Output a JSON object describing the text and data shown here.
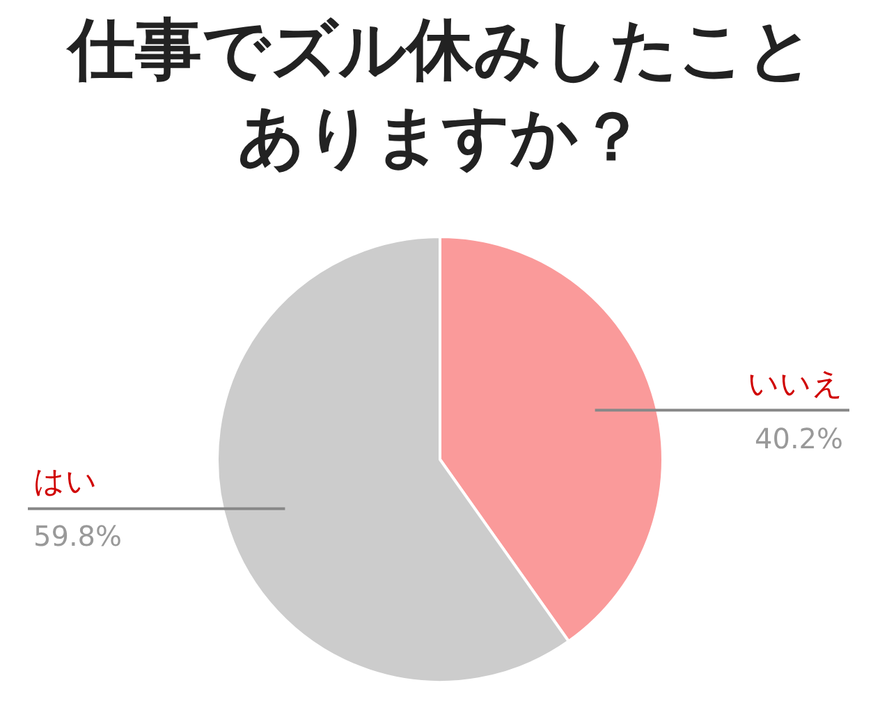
{
  "chart_data": {
    "type": "pie",
    "title": "仕事でズル休みしたことありますか？",
    "categories": [
      "いいえ",
      "はい"
    ],
    "values": [
      40.2,
      59.8
    ],
    "colors": [
      "#fa9a9a",
      "#cccccc"
    ],
    "value_labels": [
      "40.2%",
      "59.8%"
    ],
    "legend": false
  }
}
